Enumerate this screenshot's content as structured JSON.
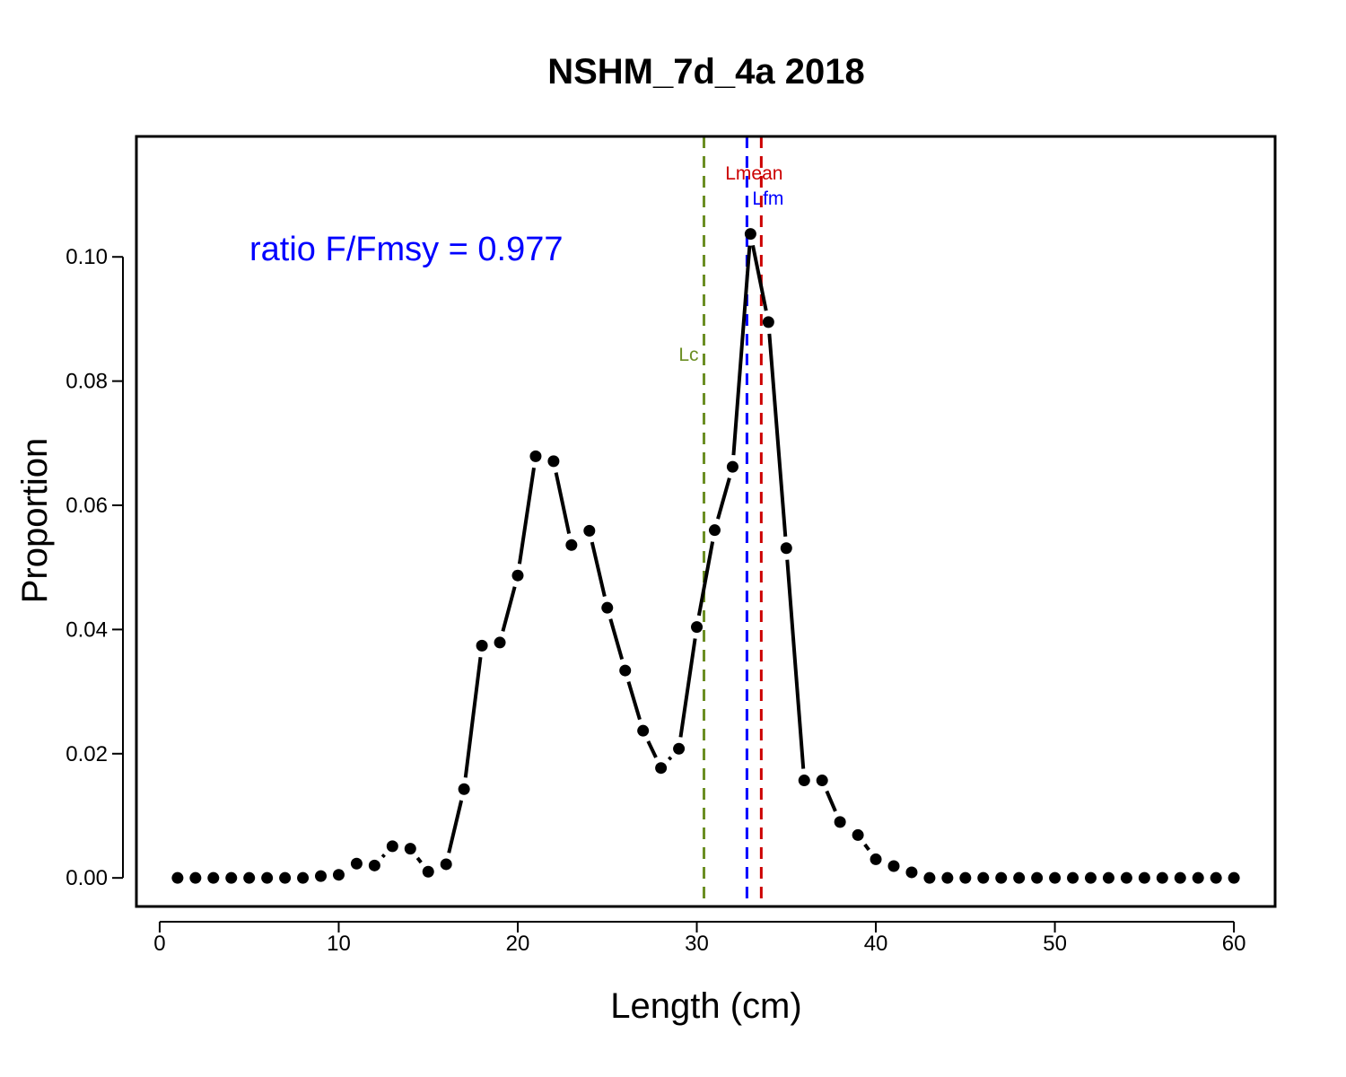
{
  "chart_data": {
    "type": "line",
    "title": "NSHM_7d_4a 2018",
    "xlabel": "Length (cm)",
    "ylabel": "Proportion",
    "xlim": [
      -1.3,
      62.3
    ],
    "ylim": [
      -0.0046,
      0.1194
    ],
    "xticks": [
      0,
      10,
      20,
      30,
      40,
      50,
      60
    ],
    "xtick_labels": [
      "0",
      "10",
      "20",
      "30",
      "40",
      "50",
      "60"
    ],
    "yticks": [
      0.0,
      0.02,
      0.04,
      0.06,
      0.08,
      0.1
    ],
    "ytick_labels": [
      "0.00",
      "0.02",
      "0.04",
      "0.06",
      "0.08",
      "0.10"
    ],
    "grid": false,
    "legend": "none",
    "series": [
      {
        "x": [
          1,
          2,
          3,
          4,
          5,
          6,
          7,
          8,
          9,
          10,
          11,
          12,
          13,
          14,
          15,
          16,
          17,
          18,
          19,
          20,
          21,
          22,
          23,
          24,
          25,
          26,
          27,
          28,
          29,
          30,
          31,
          32,
          33,
          34,
          35,
          36,
          37,
          38,
          39,
          40,
          41,
          42,
          43,
          44,
          45,
          46,
          47,
          48,
          49,
          50,
          51,
          52,
          53,
          54,
          55,
          56,
          57,
          58,
          59,
          60
        ],
        "y": [
          0,
          0,
          0,
          0,
          0,
          0,
          0,
          0,
          0.0003,
          0.0005,
          0.0023,
          0.002,
          0.0051,
          0.0047,
          0.001,
          0.0022,
          0.0143,
          0.0374,
          0.0379,
          0.0487,
          0.0679,
          0.0671,
          0.0536,
          0.0559,
          0.0435,
          0.0334,
          0.0237,
          0.0177,
          0.0208,
          0.0404,
          0.056,
          0.0662,
          0.1037,
          0.0895,
          0.0531,
          0.0157,
          0.0157,
          0.009,
          0.0069,
          0.003,
          0.0019,
          0.0009,
          0,
          0,
          0,
          0,
          0,
          0,
          0,
          0,
          0,
          0,
          0,
          0,
          0,
          0,
          0,
          0,
          0,
          0
        ],
        "color": "#000000"
      }
    ],
    "reference_lines": [
      {
        "label": "Lc",
        "x": 30.4,
        "color": "#6B8E23"
      },
      {
        "label": "Lfm",
        "x": 32.8,
        "color": "#0000FF"
      },
      {
        "label": "Lmean",
        "x": 33.6,
        "color": "#CC0000"
      }
    ],
    "annotation": {
      "text": "ratio F/Fmsy = 0.977",
      "color": "#0000FF"
    }
  }
}
